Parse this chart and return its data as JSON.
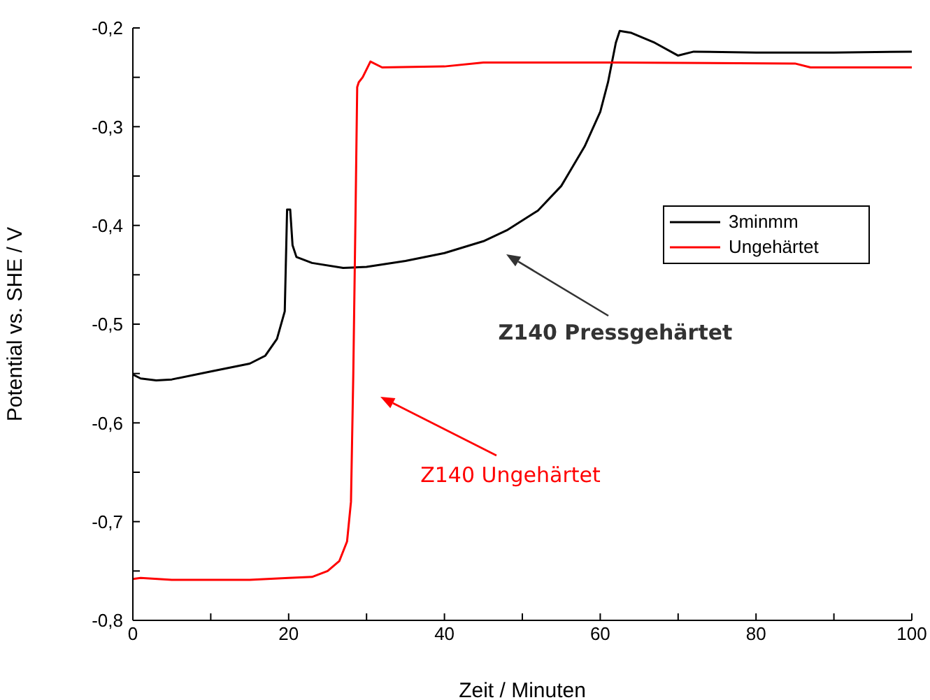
{
  "chart_data": {
    "type": "line",
    "xlabel": "Zeit / Minuten",
    "ylabel": "Potential vs. SHE / V",
    "xlim": [
      0,
      100
    ],
    "xticks": [
      0,
      {
        "value": 10,
        "label": null
      },
      20,
      {
        "value": 30,
        "label": null
      },
      40,
      {
        "value": 50,
        "label": null
      },
      60,
      {
        "value": 70,
        "label": null
      },
      80,
      {
        "value": 90,
        "label": null
      },
      100
    ],
    "ylim": [
      -0.8,
      -0.2
    ],
    "yticks": [
      {
        "value": -0.8,
        "label": "-0,8"
      },
      {
        "value": -0.75,
        "label": null
      },
      {
        "value": -0.7,
        "label": "-0,7"
      },
      {
        "value": -0.65,
        "label": null
      },
      {
        "value": -0.6,
        "label": "-0,6"
      },
      {
        "value": -0.55,
        "label": null
      },
      {
        "value": -0.5,
        "label": "-0,5"
      },
      {
        "value": -0.45,
        "label": null
      },
      {
        "value": -0.4,
        "label": "-0,4"
      },
      {
        "value": -0.35,
        "label": null
      },
      {
        "value": -0.3,
        "label": "-0,3"
      },
      {
        "value": -0.25,
        "label": null
      },
      {
        "value": -0.2,
        "label": "-0,2"
      }
    ],
    "grid": false,
    "legend": "right",
    "marker": "none",
    "line_style": "solid",
    "series": [
      {
        "name": "3minmm",
        "color": "#000000",
        "x": [
          0,
          1,
          3,
          5,
          10,
          15,
          17,
          18.5,
          19.5,
          19.8,
          20.2,
          20.5,
          21,
          23,
          27,
          30,
          35,
          40,
          45,
          48,
          52,
          55,
          58,
          60,
          61,
          62,
          62.5,
          64,
          67,
          70,
          72,
          80,
          90,
          100
        ],
        "values": [
          -0.551,
          -0.555,
          -0.557,
          -0.556,
          -0.548,
          -0.54,
          -0.532,
          -0.515,
          -0.487,
          -0.384,
          -0.384,
          -0.42,
          -0.432,
          -0.438,
          -0.443,
          -0.442,
          -0.436,
          -0.428,
          -0.416,
          -0.405,
          -0.385,
          -0.36,
          -0.32,
          -0.285,
          -0.255,
          -0.215,
          -0.203,
          -0.205,
          -0.215,
          -0.228,
          -0.224,
          -0.225,
          -0.225,
          -0.224
        ]
      },
      {
        "name": "Ungehärtet",
        "color": "#ff0000",
        "x": [
          0,
          1,
          5,
          15,
          20,
          23,
          25,
          26.5,
          27.5,
          28,
          28.3,
          28.6,
          28.8,
          29,
          29.5,
          30.5,
          32,
          40,
          45,
          55,
          62,
          85,
          87,
          100
        ],
        "values": [
          -0.758,
          -0.757,
          -0.759,
          -0.759,
          -0.757,
          -0.756,
          -0.75,
          -0.74,
          -0.72,
          -0.68,
          -0.55,
          -0.38,
          -0.26,
          -0.255,
          -0.25,
          -0.234,
          -0.24,
          -0.239,
          -0.235,
          -0.235,
          -0.235,
          -0.236,
          -0.24,
          -0.24
        ]
      }
    ],
    "annotations": [
      "Z140 Pressgehärtet",
      "Z140 Ungehärtet"
    ]
  }
}
